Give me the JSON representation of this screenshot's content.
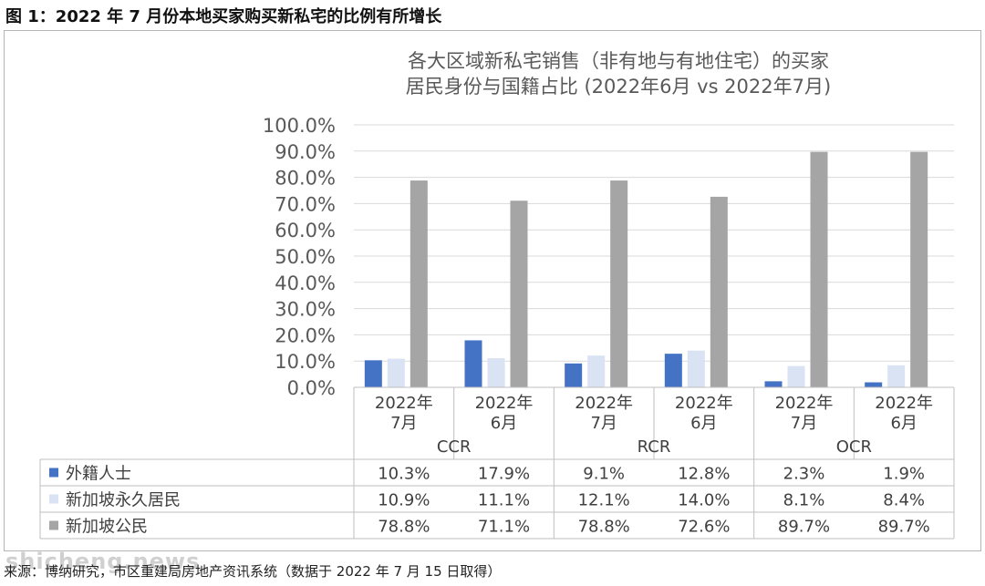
{
  "figure": {
    "title": "图 1：2022 年 7 月份本地买家购买新私宅的比例有所增长",
    "source": "来源：博纳研究，市区重建局房地产资讯系统（数据于 2022 年 7 月 15 日取得）",
    "watermark": "shicheng.news"
  },
  "chart_data": {
    "type": "bar",
    "title_line1": "各大区域新私宅销售（非有地与有地住宅）的买家",
    "title_line2": "居民身份与国籍占比 (2022年6月 vs 2022年7月)",
    "ylim": [
      0,
      100
    ],
    "yticks": [
      "0.0%",
      "10.0%",
      "20.0%",
      "30.0%",
      "40.0%",
      "50.0%",
      "60.0%",
      "70.0%",
      "80.0%",
      "90.0%",
      "100.0%"
    ],
    "grid": true,
    "categories": [
      {
        "line1": "2022年",
        "line2": "7月",
        "group": "CCR"
      },
      {
        "line1": "2022年",
        "line2": "6月",
        "group": "CCR"
      },
      {
        "line1": "2022年",
        "line2": "7月",
        "group": "RCR"
      },
      {
        "line1": "2022年",
        "line2": "6月",
        "group": "RCR"
      },
      {
        "line1": "2022年",
        "line2": "7月",
        "group": "OCR"
      },
      {
        "line1": "2022年",
        "line2": "6月",
        "group": "OCR"
      }
    ],
    "groups": [
      "CCR",
      "RCR",
      "OCR"
    ],
    "series": [
      {
        "name": "外籍人士",
        "color": "#4472c4",
        "values": [
          10.3,
          17.9,
          9.1,
          12.8,
          2.3,
          1.9
        ],
        "labels": [
          "10.3%",
          "17.9%",
          "9.1%",
          "12.8%",
          "2.3%",
          "1.9%"
        ]
      },
      {
        "name": "新加坡永久居民",
        "color": "#dae3f3",
        "values": [
          10.9,
          11.1,
          12.1,
          14.0,
          8.1,
          8.4
        ],
        "labels": [
          "10.9%",
          "11.1%",
          "12.1%",
          "14.0%",
          "8.1%",
          "8.4%"
        ]
      },
      {
        "name": "新加坡公民",
        "color": "#a5a5a5",
        "values": [
          78.8,
          71.1,
          78.8,
          72.6,
          89.7,
          89.7
        ],
        "labels": [
          "78.8%",
          "71.1%",
          "78.8%",
          "72.6%",
          "89.7%",
          "89.7%"
        ]
      }
    ]
  }
}
